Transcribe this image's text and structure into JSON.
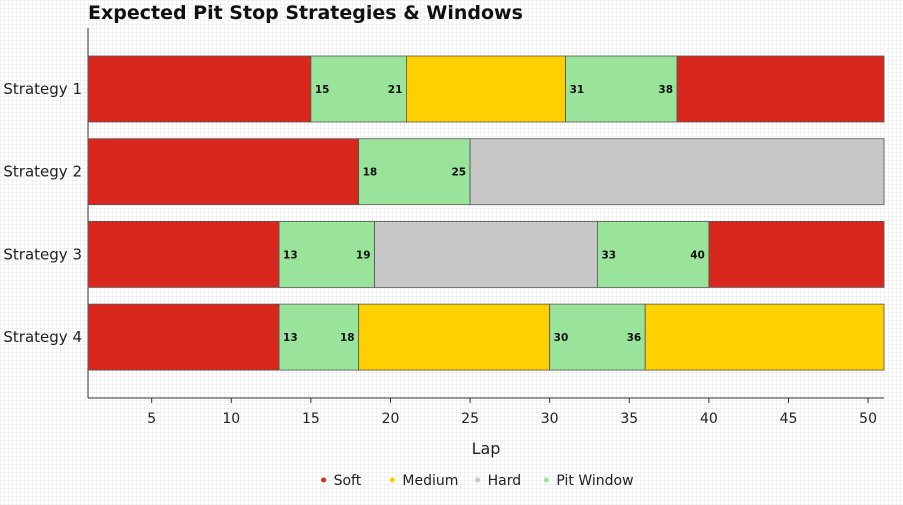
{
  "chart_data": {
    "type": "bar",
    "orientation": "horizontal-stacked",
    "title": "Expected Pit Stop Strategies & Windows",
    "xlabel": "Lap",
    "ylabel": "",
    "xlim": [
      1,
      51
    ],
    "xticks": [
      5,
      10,
      15,
      20,
      25,
      30,
      35,
      40,
      45,
      50
    ],
    "grid": false,
    "legend_position": "bottom-center",
    "legend": [
      {
        "name": "Soft",
        "color": "#d8281d"
      },
      {
        "name": "Medium",
        "color": "#ffd000"
      },
      {
        "name": "Hard",
        "color": "#c8c8c8"
      },
      {
        "name": "Pit Window",
        "color": "#99e39a"
      }
    ],
    "categories": [
      "Strategy 1",
      "Strategy 2",
      "Strategy 3",
      "Strategy 4"
    ],
    "strategies": [
      {
        "name": "Strategy 1",
        "segments": [
          {
            "compound": "Soft",
            "start": 1,
            "end": 15
          },
          {
            "compound": "Pit Window",
            "start": 15,
            "end": 21
          },
          {
            "compound": "Medium",
            "start": 21,
            "end": 31
          },
          {
            "compound": "Pit Window",
            "start": 31,
            "end": 38
          },
          {
            "compound": "Soft",
            "start": 38,
            "end": 51
          }
        ]
      },
      {
        "name": "Strategy 2",
        "segments": [
          {
            "compound": "Soft",
            "start": 1,
            "end": 18
          },
          {
            "compound": "Pit Window",
            "start": 18,
            "end": 25
          },
          {
            "compound": "Hard",
            "start": 25,
            "end": 51
          }
        ]
      },
      {
        "name": "Strategy 3",
        "segments": [
          {
            "compound": "Soft",
            "start": 1,
            "end": 13
          },
          {
            "compound": "Pit Window",
            "start": 13,
            "end": 19
          },
          {
            "compound": "Hard",
            "start": 19,
            "end": 33
          },
          {
            "compound": "Pit Window",
            "start": 33,
            "end": 40
          },
          {
            "compound": "Soft",
            "start": 40,
            "end": 51
          }
        ]
      },
      {
        "name": "Strategy 4",
        "segments": [
          {
            "compound": "Soft",
            "start": 1,
            "end": 13
          },
          {
            "compound": "Pit Window",
            "start": 13,
            "end": 18
          },
          {
            "compound": "Medium",
            "start": 18,
            "end": 30
          },
          {
            "compound": "Pit Window",
            "start": 30,
            "end": 36
          },
          {
            "compound": "Medium",
            "start": 36,
            "end": 51
          }
        ]
      }
    ]
  }
}
